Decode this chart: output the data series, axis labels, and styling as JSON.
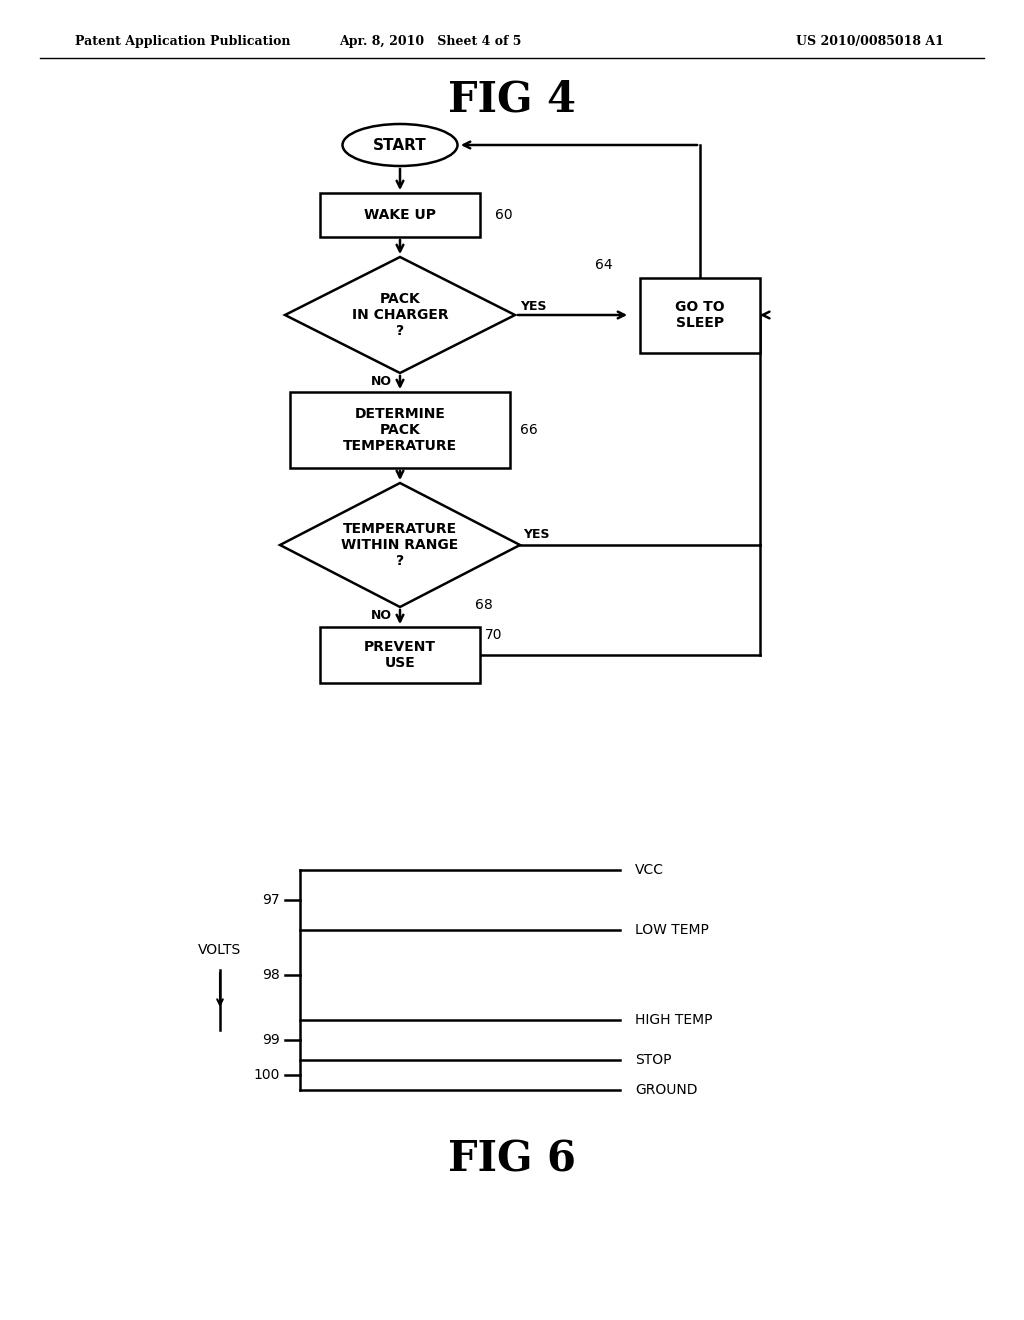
{
  "bg_color": "#ffffff",
  "header_left": "Patent Application Publication",
  "header_mid": "Apr. 8, 2010   Sheet 4 of 5",
  "header_right": "US 2010/0085018 A1",
  "fig4_title": "FIG 4",
  "fig6_title": "FIG 6",
  "lw": 1.8
}
